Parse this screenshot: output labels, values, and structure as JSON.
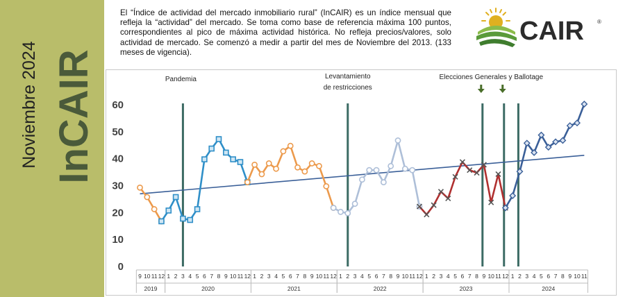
{
  "sidebar": {
    "month_title": "Noviembre 2024",
    "brand_title": "InCAIR",
    "bg_color": "#b9bd6a",
    "text_color": "#222222",
    "brand_color": "#4a5a3a"
  },
  "intro": {
    "text": "El “Índice de actividad del mercado inmobiliario rural” (InCAIR) es un índice mensual que refleja la “actividad” del mercado. Se toma como base de referencia máxima 100 puntos, correspondientes al pico de máxima actividad histórica. No refleja precios/valores, solo actividad de mercado. Se comenzó a medir a partir del mes de Noviembre del 2013. (133  meses de vigencia)."
  },
  "logo": {
    "text": "CAIR",
    "registered": "®",
    "icon": "field-sun-icon",
    "text_color": "#2c2c2c",
    "green": "#5a9a3a",
    "gold": "#e0b020"
  },
  "chart_data": {
    "type": "line",
    "ylim": [
      0,
      60
    ],
    "yticks": [
      0,
      10,
      20,
      30,
      40,
      50,
      60
    ],
    "grid": false,
    "legend": "none",
    "month_labels": [
      "9",
      "10",
      "11",
      "12",
      "1",
      "2",
      "3",
      "4",
      "5",
      "6",
      "7",
      "8",
      "9",
      "10",
      "11",
      "12",
      "1",
      "2",
      "3",
      "4",
      "5",
      "6",
      "7",
      "8",
      "9",
      "10",
      "11",
      "12",
      "1",
      "2",
      "3",
      "4",
      "5",
      "6",
      "7",
      "8",
      "9",
      "10",
      "11",
      "12",
      "1",
      "2",
      "3",
      "4",
      "5",
      "6",
      "7",
      "8",
      "9",
      "10",
      "11",
      "12",
      "1",
      "2",
      "3",
      "4",
      "5",
      "6",
      "7",
      "8",
      "9",
      "10",
      "11"
    ],
    "years": [
      {
        "label": "2019",
        "start": 0,
        "end": 3
      },
      {
        "label": "2020",
        "start": 4,
        "end": 15
      },
      {
        "label": "2021",
        "start": 16,
        "end": 27
      },
      {
        "label": "2022",
        "start": 28,
        "end": 39
      },
      {
        "label": "2023",
        "start": 40,
        "end": 51
      },
      {
        "label": "2024",
        "start": 52,
        "end": 62
      }
    ],
    "series": [
      {
        "key": "2019",
        "start": 0,
        "color": "#ec9a4c",
        "marker": "circle",
        "values": [
          29,
          25.5,
          21,
          16.5
        ]
      },
      {
        "key": "2020",
        "start": 3,
        "color": "#2f8fc8",
        "marker": "square",
        "values": [
          16.5,
          20.5,
          25.5,
          17.5,
          17,
          21,
          39.5,
          43.5,
          47,
          42,
          39.5,
          38.5,
          31
        ]
      },
      {
        "key": "2021",
        "start": 15,
        "color": "#ec9a4c",
        "marker": "circle",
        "values": [
          31,
          37.5,
          34,
          38,
          36,
          42.5,
          44.5,
          36.5,
          35,
          38,
          37,
          29.5,
          21.5
        ]
      },
      {
        "key": "2022",
        "start": 27,
        "color": "#aebfd8",
        "marker": "circle",
        "values": [
          21.5,
          20,
          19.5,
          23,
          32,
          35.5,
          35.5,
          31,
          37,
          46.5,
          36,
          35.5,
          22
        ]
      },
      {
        "key": "2023",
        "start": 39,
        "color": "#b03030",
        "marker": "x",
        "values": [
          22,
          19,
          22.5,
          27.5,
          25,
          33,
          38.5,
          35.5,
          34.5,
          37.5,
          23.5,
          34,
          21.5
        ]
      },
      {
        "key": "2024",
        "start": 51,
        "color": "#3a5f98",
        "marker": "diamond",
        "values": [
          21.5,
          26,
          35,
          45.5,
          42,
          48.5,
          44,
          46,
          46.5,
          52,
          53,
          60
        ]
      }
    ],
    "trend": {
      "x0": 0,
      "y0": 26.7,
      "x1": 62,
      "y1": 41,
      "color": "#3a5f98"
    },
    "events": [
      {
        "label": "Pandemia",
        "x": 6
      },
      {
        "label": "Levantamiento",
        "label2": "de restricciones",
        "x": 29
      },
      {
        "label": "",
        "x": 52.8
      }
    ],
    "elections": {
      "label": "Elecciones Generales y Ballotage",
      "lines": [
        47.8,
        50.8
      ]
    },
    "event_line_color": "#3c6b64"
  }
}
